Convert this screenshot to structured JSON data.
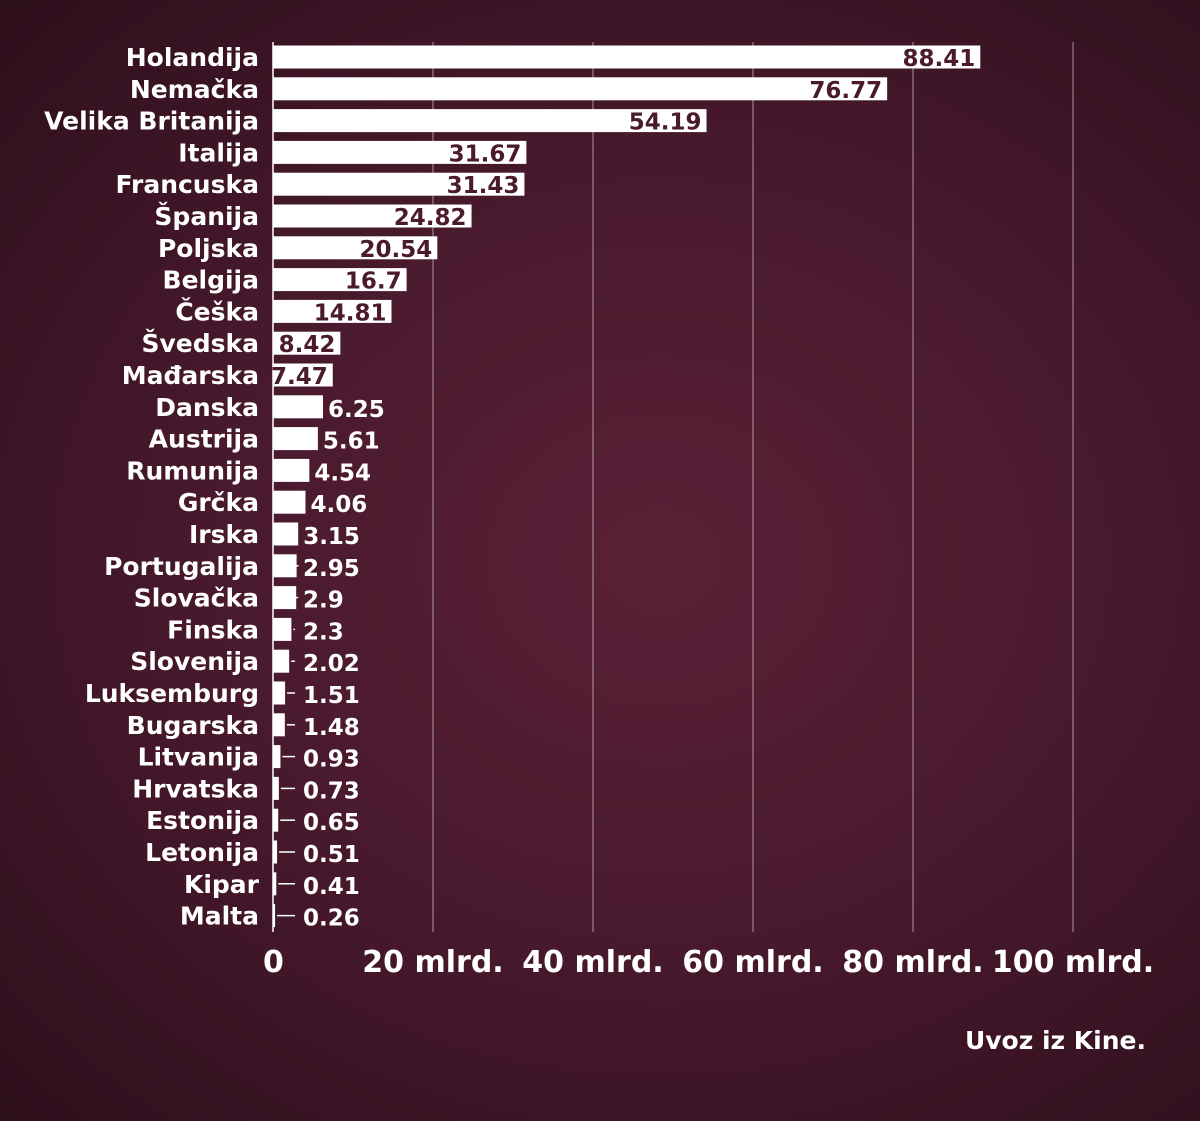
{
  "chart_data": {
    "type": "bar",
    "orientation": "horizontal",
    "categories": [
      "Holandija",
      "Nemačka",
      "Velika Britanija",
      "Italija",
      "Francuska",
      "Španija",
      "Poljska",
      "Belgija",
      "Češka",
      "Švedska",
      "Mađarska",
      "Danska",
      "Austrija",
      "Rumunija",
      "Grčka",
      "Irska",
      "Portugalija",
      "Slovačka",
      "Finska",
      "Slovenija",
      "Luksemburg",
      "Bugarska",
      "Litvanija",
      "Hrvatska",
      "Estonija",
      "Letonija",
      "Kipar",
      "Malta"
    ],
    "values": [
      88.41,
      76.77,
      54.19,
      31.67,
      31.43,
      24.82,
      20.54,
      16.7,
      14.81,
      8.42,
      7.47,
      6.25,
      5.61,
      4.54,
      4.06,
      3.15,
      2.95,
      2.9,
      2.3,
      2.02,
      1.51,
      1.48,
      0.93,
      0.73,
      0.65,
      0.51,
      0.41,
      0.26
    ],
    "value_labels": [
      "88.41",
      "76.77",
      "54.19",
      "31.67",
      "31.43",
      "24.82",
      "20.54",
      "16.7",
      "14.81",
      "8.42",
      "7.47",
      "6.25",
      "5.61",
      "4.54",
      "4.06",
      "3.15",
      "2.95",
      "2.9",
      "2.3",
      "2.02",
      "1.51",
      "1.48",
      "0.93",
      "0.73",
      "0.65",
      "0.51",
      "0.41",
      "0.26"
    ],
    "xlim": [
      0,
      100
    ],
    "x_ticks": [
      0,
      20,
      40,
      60,
      80,
      100
    ],
    "x_tick_labels": [
      "0",
      "20 mlrd.",
      "40 mlrd.",
      "60 mlrd.",
      "80 mlrd.",
      "100 mlrd."
    ],
    "grid": true,
    "caption": "Uvoz iz Kine."
  },
  "colors": {
    "background": "#4a1a2e",
    "bar": "#ffffff",
    "text": "#ffffff",
    "inside_label": "#4a1a2e"
  }
}
